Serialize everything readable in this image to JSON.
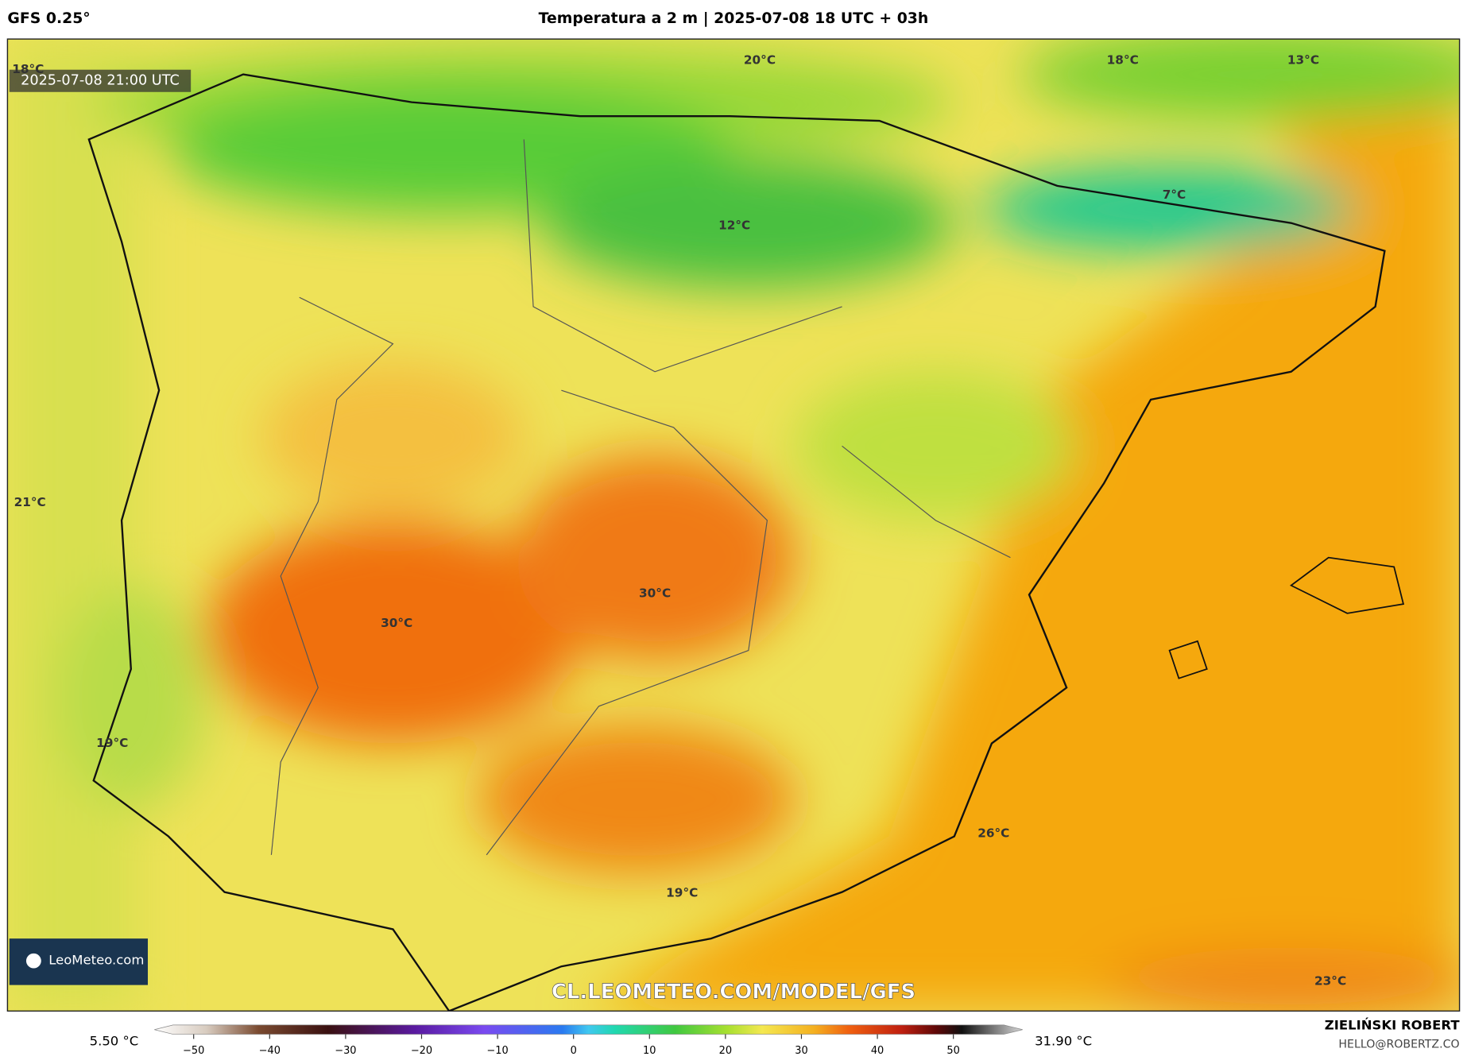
{
  "header": {
    "model": "GFS 0.25°",
    "title": "Temperatura a 2 m | 2025-07-08 18 UTC + 03h"
  },
  "map": {
    "timestamp": "2025-07-08 21:00 UTC",
    "labels": [
      "18°C",
      "20°C",
      "18°C",
      "13°C",
      "7°C",
      "12°C",
      "21°C",
      "30°C",
      "30°C",
      "19°C",
      "26°C",
      "19°C",
      "23°C"
    ],
    "logo": "LeoMeteo.com",
    "url": "CL.LEOMETEO.COM/MODEL/GFS"
  },
  "legend": {
    "min": "5.50 °C",
    "max": "31.90 °C",
    "ticks": [
      "−50",
      "−40",
      "−30",
      "−20",
      "−10",
      "0",
      "10",
      "20",
      "30",
      "40",
      "50"
    ]
  },
  "footer": {
    "author": "ZIELIŃSKI ROBERT",
    "email": "HELLO@ROBERTZ.CO"
  }
}
